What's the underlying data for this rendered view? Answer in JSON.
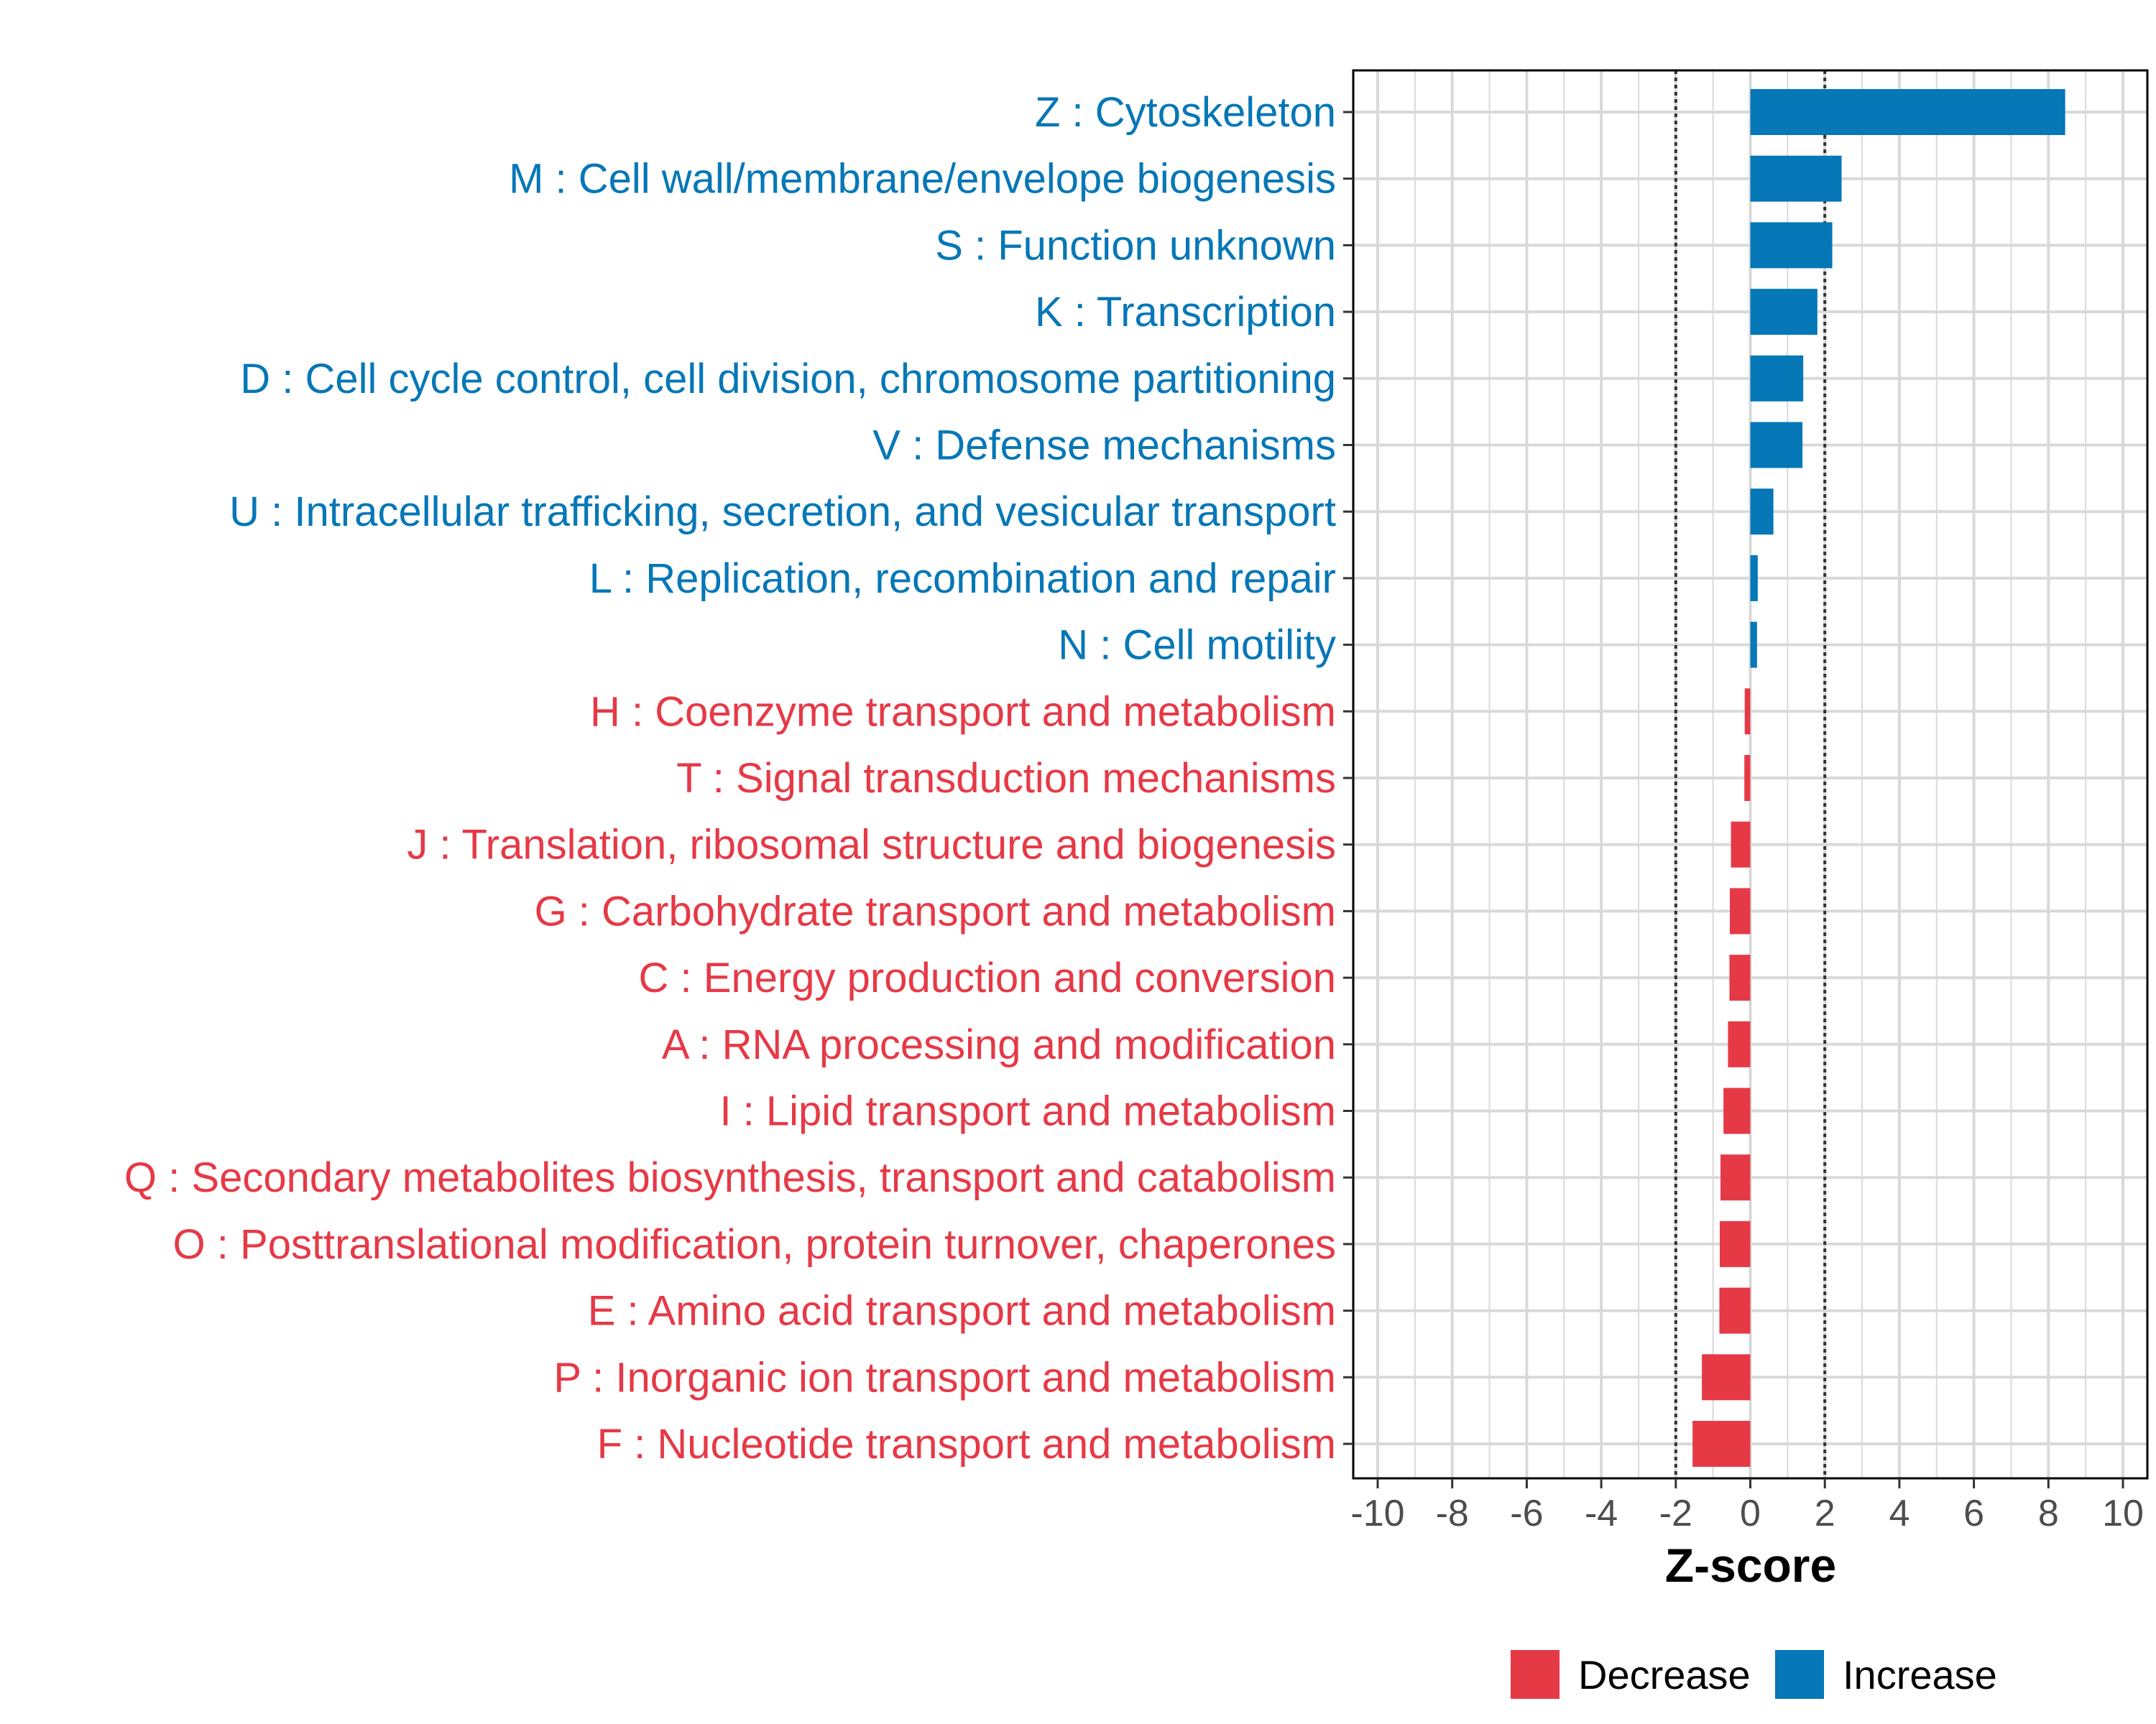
{
  "chart_data": {
    "type": "bar",
    "orientation": "horizontal",
    "xlabel": "Z-score",
    "ylabel": "",
    "xlim": [
      -10,
      10
    ],
    "xticks": [
      -10,
      -8,
      -6,
      -4,
      -2,
      0,
      2,
      4,
      6,
      8,
      10
    ],
    "xtick_labels": [
      "-10",
      "-8",
      "-6",
      "-4",
      "-2",
      "0",
      "2",
      "4",
      "6",
      "8",
      "10"
    ],
    "reference_lines": [
      -2,
      2
    ],
    "grid": true,
    "legend_position": "bottom",
    "legend": [
      {
        "label": "Decrease",
        "color": "#E63946"
      },
      {
        "label": "Increase",
        "color": "#0677B7"
      }
    ],
    "categories": [
      {
        "label": "Z : Cytoskeleton",
        "value": 8.45,
        "group": "Increase"
      },
      {
        "label": "M : Cell wall/membrane/envelope biogenesis",
        "value": 2.45,
        "group": "Increase"
      },
      {
        "label": "S : Function unknown",
        "value": 2.2,
        "group": "Increase"
      },
      {
        "label": "K : Transcription",
        "value": 1.8,
        "group": "Increase"
      },
      {
        "label": "D : Cell cycle control, cell division, chromosome partitioning",
        "value": 1.42,
        "group": "Increase"
      },
      {
        "label": "V : Defense mechanisms",
        "value": 1.4,
        "group": "Increase"
      },
      {
        "label": "U : Intracellular trafficking, secretion, and vesicular transport",
        "value": 0.62,
        "group": "Increase"
      },
      {
        "label": "L : Replication, recombination and repair",
        "value": 0.2,
        "group": "Increase"
      },
      {
        "label": "N : Cell motility",
        "value": 0.18,
        "group": "Increase"
      },
      {
        "label": "H : Coenzyme transport and metabolism",
        "value": -0.15,
        "group": "Decrease"
      },
      {
        "label": "T : Signal transduction mechanisms",
        "value": -0.16,
        "group": "Decrease"
      },
      {
        "label": "J : Translation, ribosomal structure and biogenesis",
        "value": -0.52,
        "group": "Decrease"
      },
      {
        "label": "G : Carbohydrate transport and metabolism",
        "value": -0.55,
        "group": "Decrease"
      },
      {
        "label": "C : Energy production and conversion",
        "value": -0.56,
        "group": "Decrease"
      },
      {
        "label": "A : RNA processing and modification",
        "value": -0.6,
        "group": "Decrease"
      },
      {
        "label": "I : Lipid transport and metabolism",
        "value": -0.72,
        "group": "Decrease"
      },
      {
        "label": "Q : Secondary metabolites biosynthesis, transport and catabolism",
        "value": -0.8,
        "group": "Decrease"
      },
      {
        "label": "O : Posttranslational modification, protein turnover, chaperones",
        "value": -0.82,
        "group": "Decrease"
      },
      {
        "label": "E : Amino acid transport and metabolism",
        "value": -0.83,
        "group": "Decrease"
      },
      {
        "label": "P : Inorganic ion transport and metabolism",
        "value": -1.3,
        "group": "Decrease"
      },
      {
        "label": "F : Nucleotide transport and metabolism",
        "value": -1.55,
        "group": "Decrease"
      }
    ]
  }
}
